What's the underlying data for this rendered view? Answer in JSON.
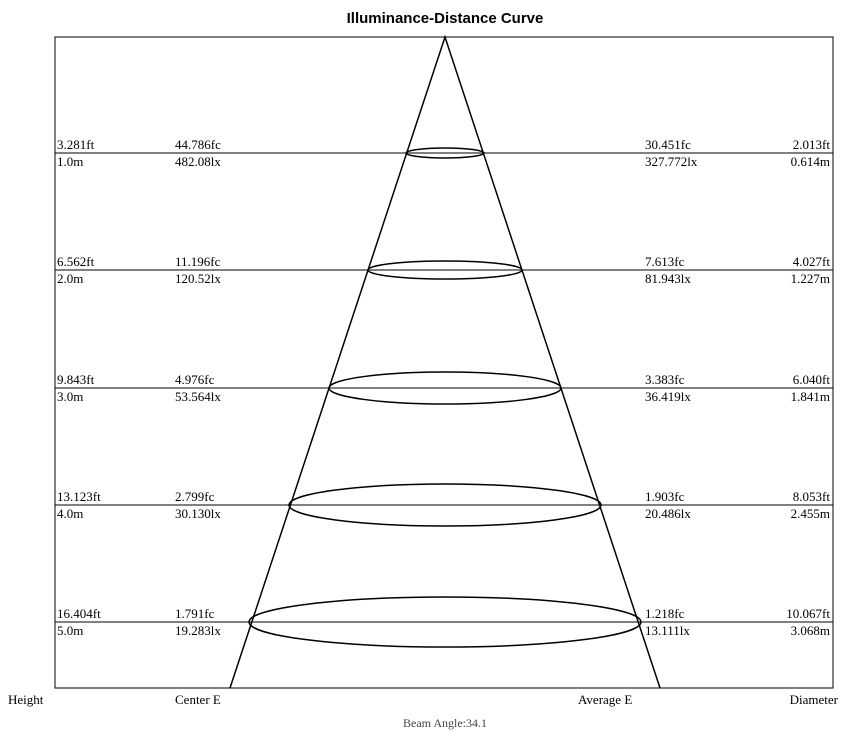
{
  "title": "Illuminance-Distance Curve",
  "rows": [
    {
      "height_ft": "3.281ft",
      "height_m": "1.0m",
      "center_fc": "44.786fc",
      "center_lx": "482.08lx",
      "average_fc": "30.451fc",
      "average_lx": "327.772lx",
      "diameter_ft": "2.013ft",
      "diameter_m": "0.614m"
    },
    {
      "height_ft": "6.562ft",
      "height_m": "2.0m",
      "center_fc": "11.196fc",
      "center_lx": "120.52lx",
      "average_fc": "7.613fc",
      "average_lx": "81.943lx",
      "diameter_ft": "4.027ft",
      "diameter_m": "1.227m"
    },
    {
      "height_ft": "9.843ft",
      "height_m": "3.0m",
      "center_fc": "4.976fc",
      "center_lx": "53.564lx",
      "average_fc": "3.383fc",
      "average_lx": "36.419lx",
      "diameter_ft": "6.040ft",
      "diameter_m": "1.841m"
    },
    {
      "height_ft": "13.123ft",
      "height_m": "4.0m",
      "center_fc": "2.799fc",
      "center_lx": "30.130lx",
      "average_fc": "1.903fc",
      "average_lx": "20.486lx",
      "diameter_ft": "8.053ft",
      "diameter_m": "2.455m"
    },
    {
      "height_ft": "16.404ft",
      "height_m": "5.0m",
      "center_fc": "1.791fc",
      "center_lx": "19.283lx",
      "average_fc": "1.218fc",
      "average_lx": "13.111lx",
      "diameter_ft": "10.067ft",
      "diameter_m": "3.068m"
    }
  ],
  "footer_labels": {
    "height": "Height",
    "center": "Center E",
    "average": "Average E",
    "diameter": "Diameter"
  },
  "beam_angle": "Beam Angle:34.1"
}
